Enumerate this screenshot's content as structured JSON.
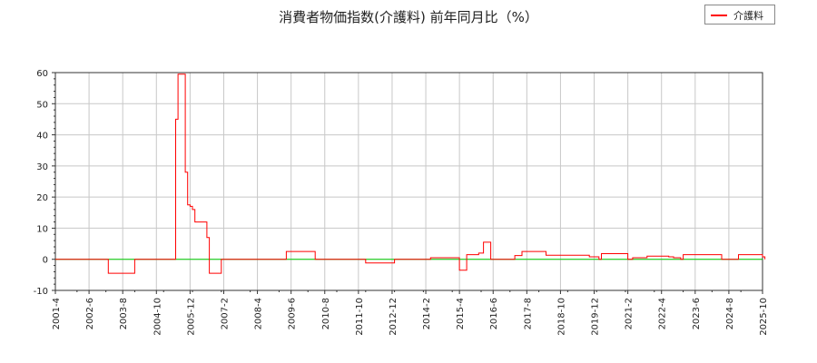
{
  "chart_data": {
    "type": "line",
    "title": "消費者物価指数(介護料) 前年同月比（%）",
    "ylim": [
      -10,
      60
    ],
    "y_ticks": [
      -10,
      0,
      10,
      20,
      30,
      40,
      50,
      60
    ],
    "x_tick_labels": [
      "2001-4",
      "2002-6",
      "2003-8",
      "2004-10",
      "2005-12",
      "2007-2",
      "2008-4",
      "2009-6",
      "2010-8",
      "2011-10",
      "2012-12",
      "2014-2",
      "2015-4",
      "2016-6",
      "2017-8",
      "2018-10",
      "2019-12",
      "2021-2",
      "2022-4",
      "2023-6",
      "2024-8",
      "2025-10"
    ],
    "x_range": [
      "2001-04",
      "2025-10"
    ],
    "grid": true,
    "legend_position": "top-right",
    "reference_line": 0,
    "series": [
      {
        "name": "介護料",
        "color": "#ff0000",
        "points": [
          [
            "2001-04",
            0
          ],
          [
            "2003-01",
            0
          ],
          [
            "2003-02",
            -4.5
          ],
          [
            "2003-12",
            -4.5
          ],
          [
            "2004-01",
            0
          ],
          [
            "2005-05",
            0
          ],
          [
            "2005-06",
            45
          ],
          [
            "2005-07",
            59.5
          ],
          [
            "2005-09",
            59.5
          ],
          [
            "2005-10",
            28
          ],
          [
            "2005-11",
            17.5
          ],
          [
            "2005-12",
            17
          ],
          [
            "2006-01",
            16
          ],
          [
            "2006-02",
            12
          ],
          [
            "2006-06",
            12
          ],
          [
            "2006-07",
            7
          ],
          [
            "2006-08",
            -4.5
          ],
          [
            "2006-12",
            -4.5
          ],
          [
            "2007-01",
            0
          ],
          [
            "2009-03",
            0
          ],
          [
            "2009-04",
            2.5
          ],
          [
            "2010-03",
            2.5
          ],
          [
            "2010-04",
            0
          ],
          [
            "2011-12",
            0
          ],
          [
            "2012-01",
            -1.2
          ],
          [
            "2012-12",
            -1.2
          ],
          [
            "2013-01",
            0
          ],
          [
            "2014-03",
            0
          ],
          [
            "2014-04",
            0.5
          ],
          [
            "2015-03",
            0.5
          ],
          [
            "2015-04",
            -3.5
          ],
          [
            "2015-06",
            -3.5
          ],
          [
            "2015-07",
            1.5
          ],
          [
            "2015-12",
            2
          ],
          [
            "2016-01",
            2
          ],
          [
            "2016-02",
            5.5
          ],
          [
            "2016-04",
            5.5
          ],
          [
            "2016-05",
            0
          ],
          [
            "2017-02",
            0
          ],
          [
            "2017-03",
            1.2
          ],
          [
            "2017-06",
            2.5
          ],
          [
            "2018-03",
            2.5
          ],
          [
            "2018-04",
            1.3
          ],
          [
            "2019-09",
            1.3
          ],
          [
            "2019-10",
            0.8
          ],
          [
            "2020-01",
            0.8
          ],
          [
            "2020-02",
            0
          ],
          [
            "2020-03",
            1.8
          ],
          [
            "2020-12",
            1.8
          ],
          [
            "2021-02",
            0
          ],
          [
            "2021-04",
            0.5
          ],
          [
            "2021-09",
            0.5
          ],
          [
            "2021-10",
            1
          ],
          [
            "2022-06",
            1
          ],
          [
            "2022-07",
            0.8
          ],
          [
            "2022-09",
            0.5
          ],
          [
            "2022-12",
            0
          ],
          [
            "2023-01",
            1.5
          ],
          [
            "2024-04",
            1.5
          ],
          [
            "2024-05",
            0
          ],
          [
            "2024-10",
            0
          ],
          [
            "2024-12",
            1.5
          ],
          [
            "2025-09",
            1.5
          ],
          [
            "2025-10",
            0.8
          ],
          [
            "2025-11",
            0
          ]
        ]
      }
    ]
  }
}
